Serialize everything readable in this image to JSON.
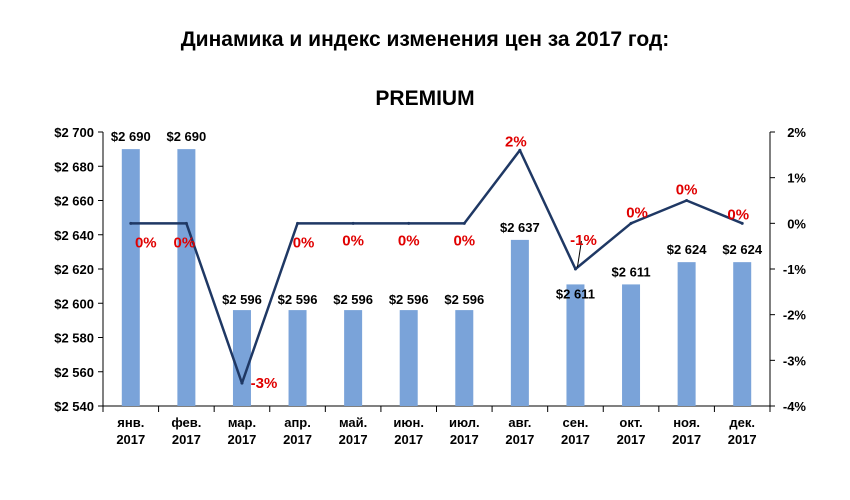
{
  "header": {
    "title": "Динамика и индекс изменения цен за 2017 год:",
    "subtitle": "PREMIUM"
  },
  "chart_data": {
    "type": "bar",
    "categories": [
      [
        "янв.",
        "2017"
      ],
      [
        "фев.",
        "2017"
      ],
      [
        "мар.",
        "2017"
      ],
      [
        "апр.",
        "2017"
      ],
      [
        "май.",
        "2017"
      ],
      [
        "июн.",
        "2017"
      ],
      [
        "июл.",
        "2017"
      ],
      [
        "авг.",
        "2017"
      ],
      [
        "сен.",
        "2017"
      ],
      [
        "окт.",
        "2017"
      ],
      [
        "ноя.",
        "2017"
      ],
      [
        "дек.",
        "2017"
      ]
    ],
    "series": [
      {
        "type": "bar",
        "axis": "left",
        "values": [
          2690,
          2690,
          2596,
          2596,
          2596,
          2596,
          2596,
          2637,
          2611,
          2611,
          2624,
          2624
        ],
        "labels": [
          "$2 690",
          "$2 690",
          "$2 596",
          "$2 596",
          "$2 596",
          "$2 596",
          "$2 596",
          "$2 637",
          "$2 611",
          "$2 611",
          "$2 624",
          "$2 624"
        ],
        "color": "#7aa3d9"
      },
      {
        "type": "line",
        "axis": "right",
        "values": [
          0,
          0,
          -3.5,
          0,
          0,
          0,
          0,
          1.6,
          -1,
          0,
          0.5,
          0
        ],
        "labels": [
          "0%",
          "0%",
          "-3%",
          "0%",
          "0%",
          "0%",
          "0%",
          "2%",
          "-1%",
          "0%",
          "0%",
          "0%"
        ],
        "color": "#1f3864",
        "label_color": "#e00000"
      }
    ],
    "y_left": {
      "min": 2540,
      "max": 2700,
      "step": 20,
      "ticks": [
        "$2 540",
        "$2 560",
        "$2 580",
        "$2 600",
        "$2 620",
        "$2 640",
        "$2 660",
        "$2 680",
        "$2 700"
      ]
    },
    "y_right": {
      "min": -4,
      "max": 2,
      "step": 1,
      "ticks": [
        "-4%",
        "-3%",
        "-2%",
        "-1%",
        "0%",
        "1%",
        "2%"
      ]
    },
    "grid": false,
    "legend": "none"
  }
}
